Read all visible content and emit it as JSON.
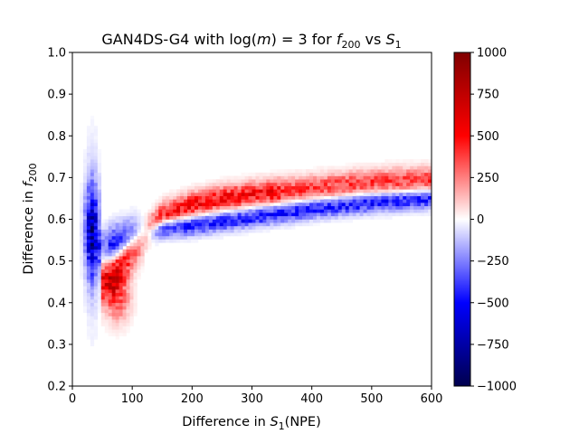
{
  "chart_data": {
    "type": "heatmap",
    "title": {
      "prefix": "GAN4DS-G4 with log(",
      "var_m": "m",
      "eq": ") = 3 for ",
      "var_f": "f",
      "sub_f": "200",
      "vs": " vs ",
      "var_s": "S",
      "sub_s": "1"
    },
    "xlabel": {
      "prefix": "Difference in ",
      "var": "S",
      "sub": "1",
      "suffix": "(NPE)"
    },
    "ylabel": {
      "prefix": "Difference in ",
      "var": "f",
      "sub": "200"
    },
    "xlim": [
      0,
      600
    ],
    "ylim": [
      0.2,
      1.0
    ],
    "xticks": [
      "0",
      "100",
      "200",
      "300",
      "400",
      "500",
      "600"
    ],
    "yticks": [
      "0.2",
      "0.3",
      "0.4",
      "0.5",
      "0.6",
      "0.7",
      "0.8",
      "0.9",
      "1.0"
    ],
    "colorbar": {
      "colormap": "seismic",
      "range": [
        -1000,
        1000
      ],
      "ticks": [
        "−1000",
        "−750",
        "−500",
        "−250",
        "0",
        "250",
        "500",
        "750",
        "1000"
      ]
    },
    "structure": {
      "blue_band_low_s1": {
        "x_range": [
          20,
          45
        ],
        "y_range": [
          0.25,
          0.85
        ],
        "peak_y": 0.57,
        "peak_value": -700
      },
      "blue_curve": [
        [
          45,
          0.53
        ],
        [
          100,
          0.56
        ],
        [
          150,
          0.58
        ],
        [
          200,
          0.585
        ],
        [
          250,
          0.595
        ],
        [
          300,
          0.605
        ],
        [
          400,
          0.625
        ],
        [
          500,
          0.64
        ],
        [
          600,
          0.65
        ]
      ],
      "red_curve": [
        [
          55,
          0.45
        ],
        [
          70,
          0.47
        ],
        [
          100,
          0.53
        ],
        [
          150,
          0.61
        ],
        [
          200,
          0.635
        ],
        [
          250,
          0.65
        ],
        [
          300,
          0.66
        ],
        [
          400,
          0.675
        ],
        [
          500,
          0.69
        ],
        [
          600,
          0.695
        ]
      ],
      "red_peak_value": 500,
      "blue_peak_value": -450
    }
  }
}
